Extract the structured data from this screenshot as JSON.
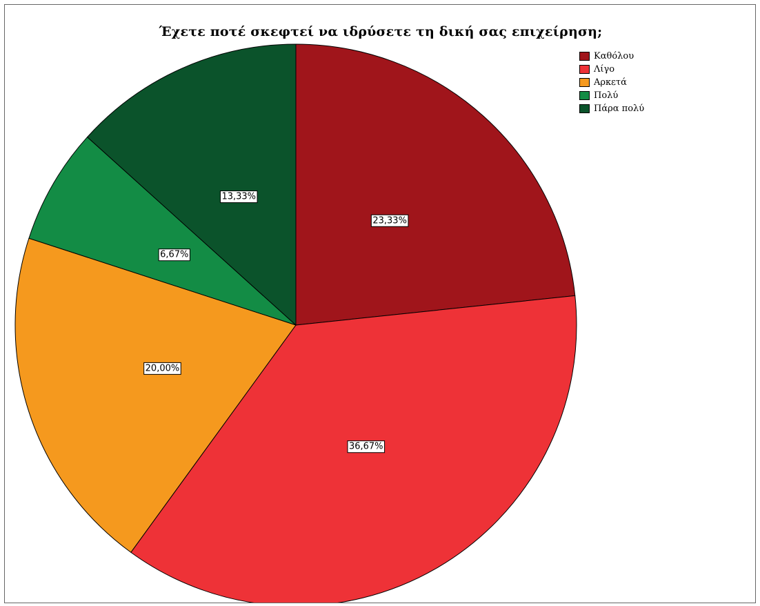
{
  "chart_data": {
    "type": "pie",
    "title": "Έχετε ποτέ σκεφτεί να ιδρύσετε τη δική σας επιχείρηση;",
    "legend_position": "top-right",
    "slices": [
      {
        "name": "Καθόλου",
        "value": 23.33,
        "label": "23,33%",
        "color": "#a0151b"
      },
      {
        "name": "Λίγο",
        "value": 36.67,
        "label": "36,67%",
        "color": "#ee3237"
      },
      {
        "name": "Αρκετά",
        "value": 20.0,
        "label": "20,00%",
        "color": "#f5991e"
      },
      {
        "name": "Πολύ",
        "value": 6.67,
        "label": "6,67%",
        "color": "#138c45"
      },
      {
        "name": "Πάρα πολύ",
        "value": 13.33,
        "label": "13,33%",
        "color": "#0b532b"
      }
    ]
  }
}
